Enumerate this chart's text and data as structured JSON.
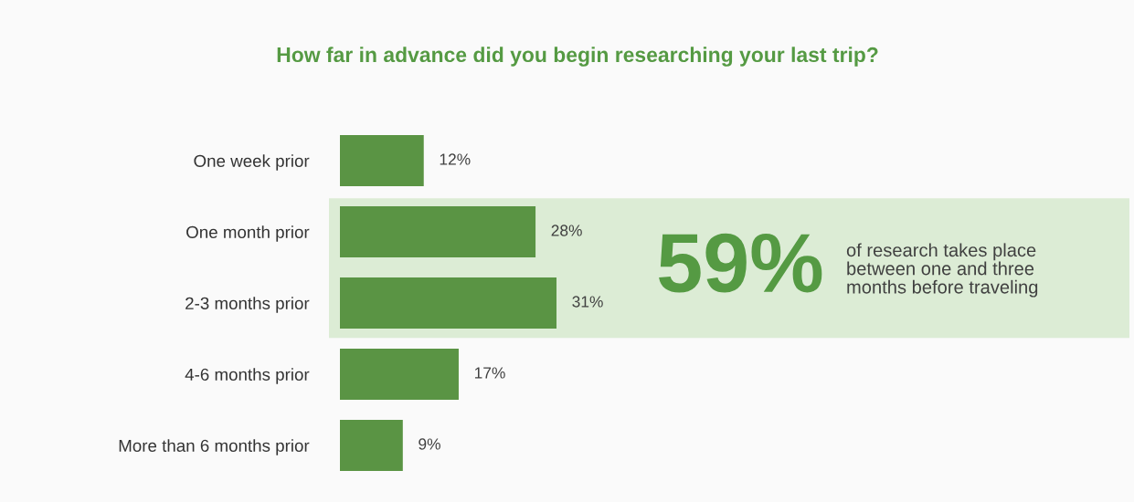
{
  "chart_data": {
    "type": "bar",
    "orientation": "horizontal",
    "title": "How far in advance did you begin researching your last trip?",
    "categories": [
      "One week prior",
      "One month prior",
      "2-3 months prior",
      "4-6 months prior",
      "More than 6 months prior"
    ],
    "values": [
      12,
      28,
      31,
      17,
      9
    ],
    "value_labels": [
      "12%",
      "28%",
      "31%",
      "17%",
      "9%"
    ],
    "color": "#5a9444",
    "tick_labels": "y",
    "grid": false,
    "bands": [
      {
        "axis": "y",
        "from": "One month prior",
        "to": "2-3 months prior",
        "color": "#dcecd5"
      }
    ],
    "annotations": [
      "59%",
      "of research takes place\nbetween one and three\nmonths before traveling"
    ]
  }
}
